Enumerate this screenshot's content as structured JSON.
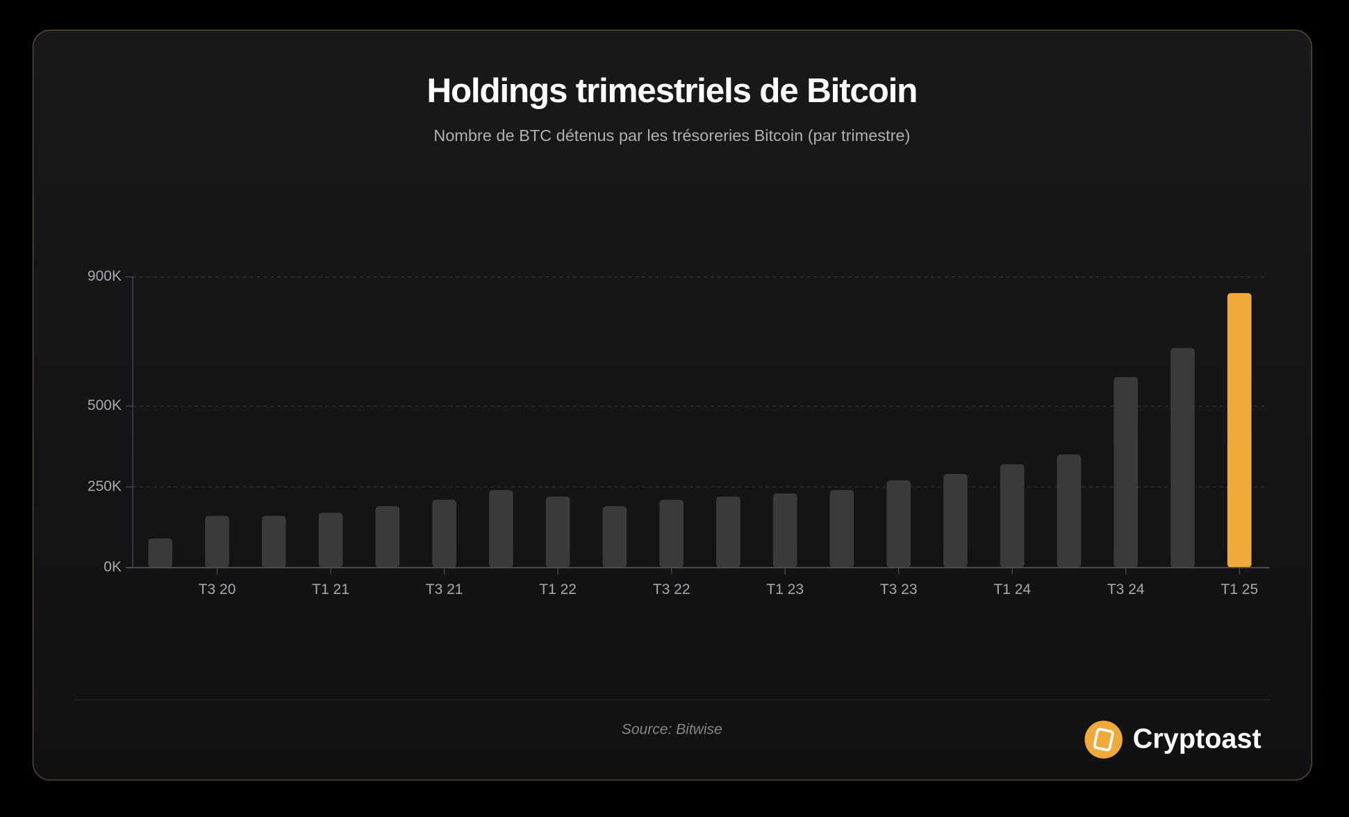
{
  "chart_data": {
    "type": "bar",
    "title": "Holdings trimestriels de Bitcoin",
    "subtitle": "Nombre de BTC détenus par les trésoreries Bitcoin (par trimestre)",
    "categories": [
      null,
      "T3 20",
      null,
      "T1 21",
      null,
      "T3 21",
      null,
      "T1 22",
      null,
      "T3 22",
      null,
      "T1 23",
      null,
      "T3 23",
      null,
      "T1 24",
      null,
      "T3 24",
      null,
      "T1 25"
    ],
    "values": [
      90000,
      160000,
      160000,
      170000,
      190000,
      210000,
      240000,
      220000,
      190000,
      210000,
      220000,
      230000,
      240000,
      270000,
      290000,
      320000,
      350000,
      590000,
      680000,
      850000
    ],
    "colors": [
      "#3a3a3b",
      "#3a3a3b",
      "#3a3a3b",
      "#3a3a3b",
      "#3a3a3b",
      "#3a3a3b",
      "#3a3a3b",
      "#3a3a3b",
      "#3a3a3b",
      "#3a3a3b",
      "#3a3a3b",
      "#3a3a3b",
      "#3a3a3b",
      "#3a3a3b",
      "#3a3a3b",
      "#3a3a3b",
      "#3a3a3b",
      "#3a3a3b",
      "#3a3a3b",
      "#f0a93b"
    ],
    "ylim": [
      0,
      900000
    ],
    "yticks": [
      {
        "value": 0,
        "label": "0K"
      },
      {
        "value": 250000,
        "label": "250K"
      },
      {
        "value": 500000,
        "label": "500K"
      },
      {
        "value": 900000,
        "label": "900K"
      }
    ],
    "grid": true,
    "source": "Source: Bitwise",
    "brand": "Cryptoast"
  }
}
